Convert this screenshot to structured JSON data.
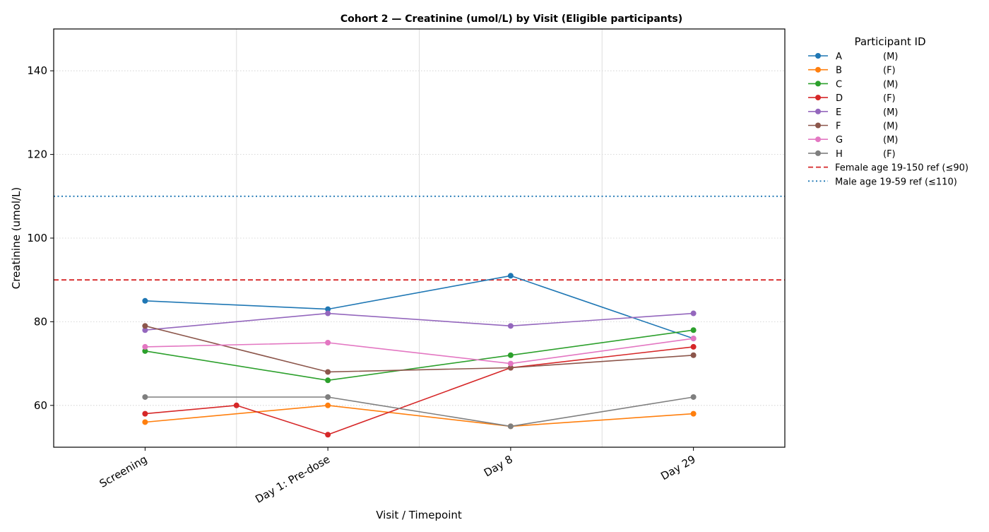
{
  "chart_data": {
    "type": "line",
    "title": "Cohort 2 — Creatinine (umol/L) by Visit (Eligible participants)",
    "xlabel": "Visit / Timepoint",
    "ylabel": "Creatinine (umol/L)",
    "categories": [
      "Screening",
      "Day 1: Pre-dose",
      "Day 8",
      "Day 29"
    ],
    "ylim": [
      50,
      150
    ],
    "yticks": [
      60,
      80,
      100,
      120,
      140
    ],
    "grid": true,
    "legend_title": "Participant ID",
    "legend_placement": "outside-right",
    "series": [
      {
        "name": "A",
        "sex": "(M)",
        "color": "#1f77b4",
        "points": [
          [
            0,
            85
          ],
          [
            1,
            83
          ],
          [
            2,
            91
          ],
          [
            3,
            76
          ]
        ]
      },
      {
        "name": "B",
        "sex": "(F)",
        "color": "#ff7f0e",
        "points": [
          [
            0,
            56
          ],
          [
            1,
            60
          ],
          [
            2,
            55
          ],
          [
            3,
            58
          ]
        ]
      },
      {
        "name": "C",
        "sex": "(M)",
        "color": "#2ca02c",
        "points": [
          [
            0,
            73
          ],
          [
            1,
            66
          ],
          [
            2,
            72
          ],
          [
            3,
            78
          ]
        ]
      },
      {
        "name": "D",
        "sex": "(F)",
        "color": "#d62728",
        "points": [
          [
            0,
            58
          ],
          [
            0.5,
            60
          ],
          [
            1,
            53
          ],
          [
            2,
            69
          ],
          [
            3,
            74
          ]
        ]
      },
      {
        "name": "E",
        "sex": "(M)",
        "color": "#9467bd",
        "points": [
          [
            0,
            78
          ],
          [
            1,
            82
          ],
          [
            2,
            79
          ],
          [
            3,
            82
          ]
        ]
      },
      {
        "name": "F",
        "sex": "(M)",
        "color": "#8c564b",
        "points": [
          [
            0,
            79
          ],
          [
            1,
            68
          ],
          [
            2,
            69
          ],
          [
            3,
            72
          ]
        ]
      },
      {
        "name": "G",
        "sex": "(M)",
        "color": "#e377c2",
        "points": [
          [
            0,
            74
          ],
          [
            1,
            75
          ],
          [
            2,
            70
          ],
          [
            3,
            76
          ]
        ]
      },
      {
        "name": "H",
        "sex": "(F)",
        "color": "#7f7f7f",
        "points": [
          [
            0,
            62
          ],
          [
            1,
            62
          ],
          [
            2,
            55
          ],
          [
            3,
            62
          ]
        ]
      }
    ],
    "reference_lines": [
      {
        "label": "Female age 19-150 ref (≤90)",
        "value": 90,
        "color": "#d62728",
        "style": "dashed"
      },
      {
        "label": "Male age 19-59 ref (≤110)",
        "value": 110,
        "color": "#1f77b4",
        "style": "dotted"
      }
    ]
  }
}
